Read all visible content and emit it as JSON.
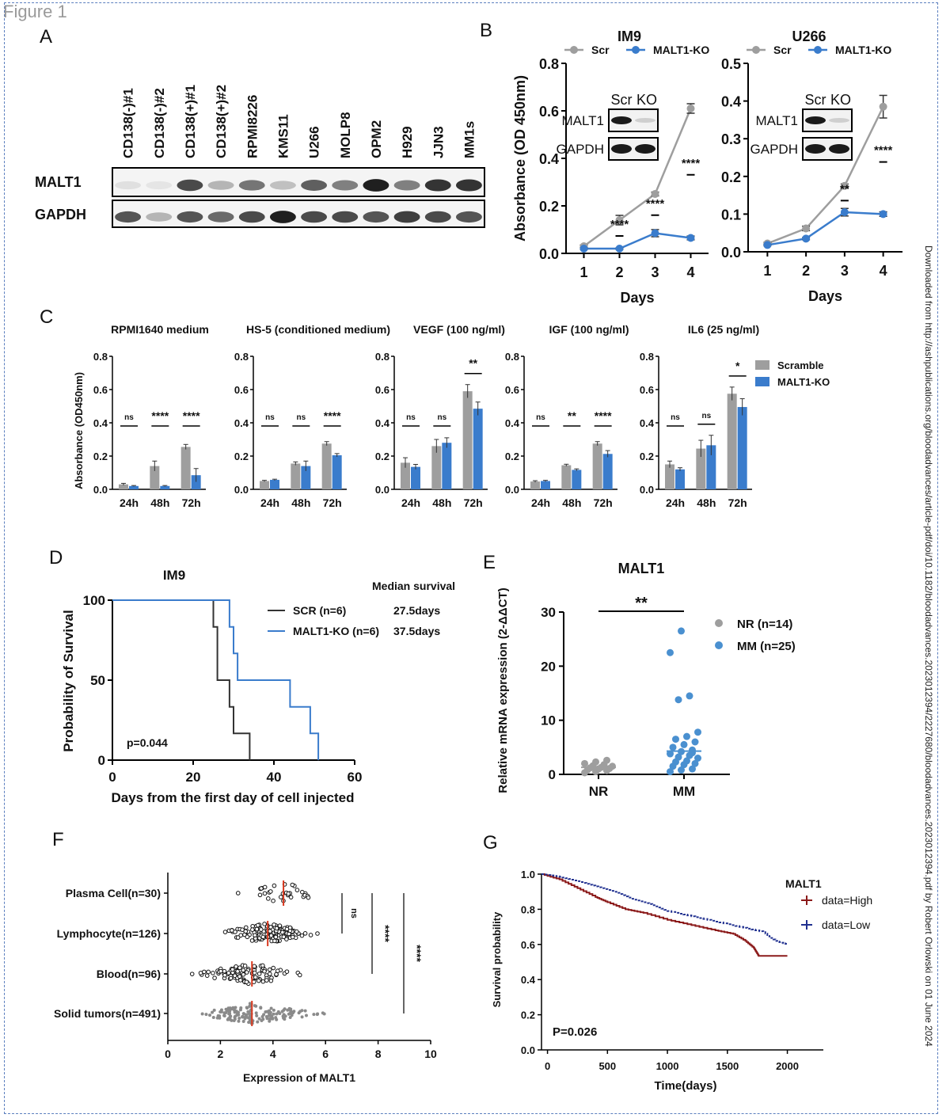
{
  "figure_title": "Figure 1",
  "side_note": "Downloaded from http://ashpublications.org/bloodadvances/article-pdf/doi/10.1182/bloodadvances.2023012394/2227680/bloodadvances.2023012394.pdf by Robert Orlowski on 01 June 2024",
  "panels": {
    "A": "A",
    "B": "B",
    "C": "C",
    "D": "D",
    "E": "E",
    "F": "F",
    "G": "G"
  },
  "colors": {
    "gray": "#9e9e9e",
    "blue": "#3a7ccc",
    "dark": "#333333",
    "red": "#8b1a1a",
    "navy": "#1f2f8f",
    "point_blue": "#4a90d0"
  },
  "blot_A": {
    "lanes": [
      "CD138(-)#1",
      "CD138(-)#2",
      "CD138(+)#1",
      "CD138(+)#2",
      "RPMI8226",
      "KMS11",
      "U266",
      "MOLP8",
      "OPM2",
      "H929",
      "JJN3",
      "MM1s"
    ],
    "rows": [
      "MALT1",
      "GAPDH"
    ],
    "malt1_intensity": [
      0.05,
      0.03,
      0.75,
      0.25,
      0.55,
      0.2,
      0.65,
      0.5,
      0.95,
      0.5,
      0.85,
      0.85
    ],
    "gapdh_intensity": [
      0.7,
      0.25,
      0.7,
      0.6,
      0.75,
      0.95,
      0.75,
      0.75,
      0.7,
      0.8,
      0.75,
      0.7
    ]
  },
  "chart_data": [
    {
      "panel": "B",
      "type": "line",
      "title": "IM9",
      "xlabel": "Days",
      "ylabel": "Absorbance (OD 450nm)",
      "x": [
        1,
        2,
        3,
        4
      ],
      "xticks": [
        "1",
        "2",
        "3",
        "4"
      ],
      "ylim": [
        0,
        0.8
      ],
      "yticks": [
        "0.0",
        "0.2",
        "0.4",
        "0.6",
        "0.8"
      ],
      "series": [
        {
          "name": "Scr",
          "values": [
            0.03,
            0.14,
            0.25,
            0.61
          ],
          "err": [
            0.005,
            0.02,
            0.008,
            0.02
          ]
        },
        {
          "name": "MALT1-KO",
          "values": [
            0.02,
            0.02,
            0.085,
            0.065
          ],
          "err": [
            0.003,
            0.003,
            0.015,
            0.008
          ]
        }
      ],
      "sig": [
        "",
        "****",
        "****",
        "****"
      ],
      "legend": "top",
      "inset": {
        "cols": [
          "Scr",
          "KO"
        ],
        "rows": [
          "MALT1",
          "GAPDH"
        ]
      }
    },
    {
      "panel": "B",
      "type": "line",
      "title": "U266",
      "xlabel": "Days",
      "x": [
        1,
        2,
        3,
        4
      ],
      "xticks": [
        "1",
        "2",
        "3",
        "4"
      ],
      "ylim": [
        0,
        0.5
      ],
      "yticks": [
        "0.0",
        "0.1",
        "0.2",
        "0.3",
        "0.4",
        "0.5"
      ],
      "series": [
        {
          "name": "Scr",
          "values": [
            0.022,
            0.062,
            0.175,
            0.385
          ],
          "err": [
            0.003,
            0.006,
            0.005,
            0.03
          ]
        },
        {
          "name": "MALT1-KO",
          "values": [
            0.018,
            0.035,
            0.105,
            0.1
          ],
          "err": [
            0.002,
            0.003,
            0.01,
            0.006
          ]
        }
      ],
      "sig": [
        "",
        "",
        "**",
        "****"
      ],
      "legend": "top",
      "inset": {
        "cols": [
          "Scr",
          "KO"
        ],
        "rows": [
          "MALT1",
          "GAPDH"
        ]
      }
    },
    {
      "panel": "C",
      "type": "bar",
      "title": "RPMI1640 medium",
      "ylabel": "Absorbance (OD450nm)",
      "categories": [
        "24h",
        "48h",
        "72h"
      ],
      "ylim": [
        0,
        0.8
      ],
      "yticks": [
        "0.0",
        "0.2",
        "0.4",
        "0.6",
        "0.8"
      ],
      "series": [
        {
          "name": "Scramble",
          "values": [
            0.03,
            0.14,
            0.255
          ],
          "err": [
            0.006,
            0.03,
            0.015
          ]
        },
        {
          "name": "MALT1-KO",
          "values": [
            0.02,
            0.02,
            0.085
          ],
          "err": [
            0.003,
            0.003,
            0.04
          ]
        }
      ],
      "sig": [
        "ns",
        "****",
        "****"
      ]
    },
    {
      "panel": "C",
      "type": "bar",
      "title": "HS-5 (conditioned medium)",
      "categories": [
        "24h",
        "48h",
        "72h"
      ],
      "ylim": [
        0,
        0.8
      ],
      "yticks": [
        "0.0",
        "0.2",
        "0.4",
        "0.6",
        "0.8"
      ],
      "series": [
        {
          "name": "Scramble",
          "values": [
            0.05,
            0.155,
            0.275
          ],
          "err": [
            0.004,
            0.01,
            0.012
          ]
        },
        {
          "name": "MALT1-KO",
          "values": [
            0.057,
            0.14,
            0.205
          ],
          "err": [
            0.004,
            0.03,
            0.01
          ]
        }
      ],
      "sig": [
        "ns",
        "ns",
        "****"
      ]
    },
    {
      "panel": "C",
      "type": "bar",
      "title": "VEGF (100 ng/ml)",
      "categories": [
        "24h",
        "48h",
        "72h"
      ],
      "ylim": [
        0,
        0.8
      ],
      "yticks": [
        "0.0",
        "0.2",
        "0.4",
        "0.6",
        "0.8"
      ],
      "series": [
        {
          "name": "Scramble",
          "values": [
            0.16,
            0.26,
            0.59
          ],
          "err": [
            0.03,
            0.04,
            0.04
          ]
        },
        {
          "name": "MALT1-KO",
          "values": [
            0.135,
            0.28,
            0.485
          ],
          "err": [
            0.015,
            0.03,
            0.04
          ]
        }
      ],
      "sig": [
        "ns",
        "ns",
        "**"
      ]
    },
    {
      "panel": "C",
      "type": "bar",
      "title": "IGF (100 ng/ml)",
      "categories": [
        "24h",
        "48h",
        "72h"
      ],
      "ylim": [
        0,
        0.8
      ],
      "yticks": [
        "0.0",
        "0.2",
        "0.4",
        "0.6",
        "0.8"
      ],
      "series": [
        {
          "name": "Scramble",
          "values": [
            0.047,
            0.145,
            0.275
          ],
          "err": [
            0.005,
            0.006,
            0.012
          ]
        },
        {
          "name": "MALT1-KO",
          "values": [
            0.05,
            0.117,
            0.213
          ],
          "err": [
            0.004,
            0.006,
            0.02
          ]
        }
      ],
      "sig": [
        "ns",
        "**",
        "****"
      ]
    },
    {
      "panel": "C",
      "type": "bar",
      "title": "IL6 (25 ng/ml)",
      "categories": [
        "24h",
        "48h",
        "72h"
      ],
      "ylim": [
        0,
        0.8
      ],
      "yticks": [
        "0.0",
        "0.2",
        "0.4",
        "0.6",
        "0.8"
      ],
      "series": [
        {
          "name": "Scramble",
          "values": [
            0.15,
            0.245,
            0.575
          ],
          "err": [
            0.02,
            0.05,
            0.04
          ]
        },
        {
          "name": "MALT1-KO",
          "values": [
            0.12,
            0.265,
            0.495
          ],
          "err": [
            0.01,
            0.06,
            0.05
          ]
        }
      ],
      "sig": [
        "ns",
        "ns",
        "*"
      ],
      "legend": "right"
    },
    {
      "panel": "D",
      "type": "line",
      "subtype": "survival",
      "title": "IM9",
      "xlabel": "Days from the first day of cell injected",
      "ylabel": "Probability of Survival",
      "xlim": [
        0,
        60
      ],
      "xticks": [
        "0",
        "20",
        "40",
        "60"
      ],
      "ylim": [
        0,
        100
      ],
      "yticks": [
        "0",
        "50",
        "100"
      ],
      "series": [
        {
          "name": "SCR (n=6)",
          "median": "27.5days",
          "steps": [
            [
              0,
              100
            ],
            [
              25,
              100
            ],
            [
              25,
              83.3
            ],
            [
              26,
              83.3
            ],
            [
              26,
              50
            ],
            [
              29,
              50
            ],
            [
              29,
              33.3
            ],
            [
              30,
              33.3
            ],
            [
              30,
              16.7
            ],
            [
              34,
              16.7
            ],
            [
              34,
              0
            ]
          ]
        },
        {
          "name": "MALT1-KO (n=6)",
          "median": "37.5days",
          "steps": [
            [
              0,
              100
            ],
            [
              29,
              100
            ],
            [
              29,
              83.3
            ],
            [
              30,
              83.3
            ],
            [
              30,
              66.7
            ],
            [
              31,
              66.7
            ],
            [
              31,
              50
            ],
            [
              44,
              50
            ],
            [
              44,
              33.3
            ],
            [
              49,
              33.3
            ],
            [
              49,
              16.7
            ],
            [
              51,
              16.7
            ],
            [
              51,
              0
            ]
          ]
        }
      ],
      "legend_header": "Median survival",
      "pvalue": "p=0.044"
    },
    {
      "panel": "E",
      "type": "scatter",
      "title": "MALT1",
      "ylabel": "Relative mRNA expression (2-ΔΔCT)",
      "categories": [
        "NR",
        "MM"
      ],
      "ylim": [
        0,
        30
      ],
      "yticks": [
        "0",
        "10",
        "20",
        "30"
      ],
      "series": [
        {
          "name": "NR  (n=14)",
          "values": [
            0.3,
            0.5,
            0.7,
            0.8,
            1.0,
            1.1,
            1.2,
            1.3,
            1.5,
            1.6,
            1.8,
            2.0,
            2.3,
            2.6
          ],
          "mean": 1.3
        },
        {
          "name": "MM (n=25)",
          "values": [
            0.5,
            0.8,
            1.0,
            1.5,
            1.8,
            2.0,
            2.3,
            2.5,
            3.0,
            3.2,
            3.5,
            3.8,
            4.2,
            4.5,
            5.0,
            5.5,
            6.0,
            6.5,
            7.0,
            7.8,
            13.8,
            14.5,
            22.5,
            26.5,
            4.0
          ],
          "mean": 4.3
        }
      ],
      "sig": "**"
    },
    {
      "panel": "F",
      "type": "scatter",
      "subtype": "beeswarm",
      "xlabel": "Expression of MALT1",
      "xlim": [
        0,
        10
      ],
      "xticks": [
        "0",
        "2",
        "4",
        "6",
        "8",
        "10"
      ],
      "categories": [
        "Plasma Cell(n=30)",
        "Lymphocyte(n=126)",
        "Blood(n=96)",
        "Solid tumors(n=491)"
      ],
      "medians": [
        4.4,
        3.8,
        3.2,
        3.2
      ],
      "ranges": [
        [
          2.2,
          6.2
        ],
        [
          1.4,
          5.9
        ],
        [
          0.4,
          5.6
        ],
        [
          0.5,
          6.8
        ]
      ],
      "counts": [
        30,
        126,
        96,
        491
      ],
      "sig": [
        "ns",
        "****",
        "****"
      ]
    },
    {
      "panel": "G",
      "type": "line",
      "subtype": "survival",
      "xlabel": "Time(days)",
      "ylabel": "Survival probability",
      "xlim": [
        -50,
        2300
      ],
      "xticks": [
        "0",
        "500",
        "1000",
        "1500",
        "2000"
      ],
      "ylim": [
        0,
        1
      ],
      "yticks": [
        "0.0",
        "0.2",
        "0.4",
        "0.6",
        "0.8",
        "1.0"
      ],
      "legend_title": "MALT1",
      "series": [
        {
          "name": "data=High",
          "points": [
            [
              -50,
              1.0
            ],
            [
              100,
              0.97
            ],
            [
              250,
              0.92
            ],
            [
              400,
              0.87
            ],
            [
              500,
              0.84
            ],
            [
              650,
              0.8
            ],
            [
              800,
              0.78
            ],
            [
              1000,
              0.74
            ],
            [
              1200,
              0.71
            ],
            [
              1400,
              0.68
            ],
            [
              1550,
              0.66
            ],
            [
              1650,
              0.62
            ],
            [
              1720,
              0.58
            ],
            [
              1760,
              0.535
            ],
            [
              2000,
              0.535
            ]
          ]
        },
        {
          "name": "data=Low",
          "points": [
            [
              -50,
              1.0
            ],
            [
              100,
              0.985
            ],
            [
              250,
              0.96
            ],
            [
              400,
              0.93
            ],
            [
              550,
              0.9
            ],
            [
              700,
              0.86
            ],
            [
              850,
              0.83
            ],
            [
              1000,
              0.79
            ],
            [
              1200,
              0.76
            ],
            [
              1400,
              0.73
            ],
            [
              1600,
              0.7
            ],
            [
              1800,
              0.67
            ],
            [
              1900,
              0.62
            ],
            [
              2000,
              0.6
            ]
          ]
        }
      ],
      "pvalue": "P=0.026"
    }
  ]
}
